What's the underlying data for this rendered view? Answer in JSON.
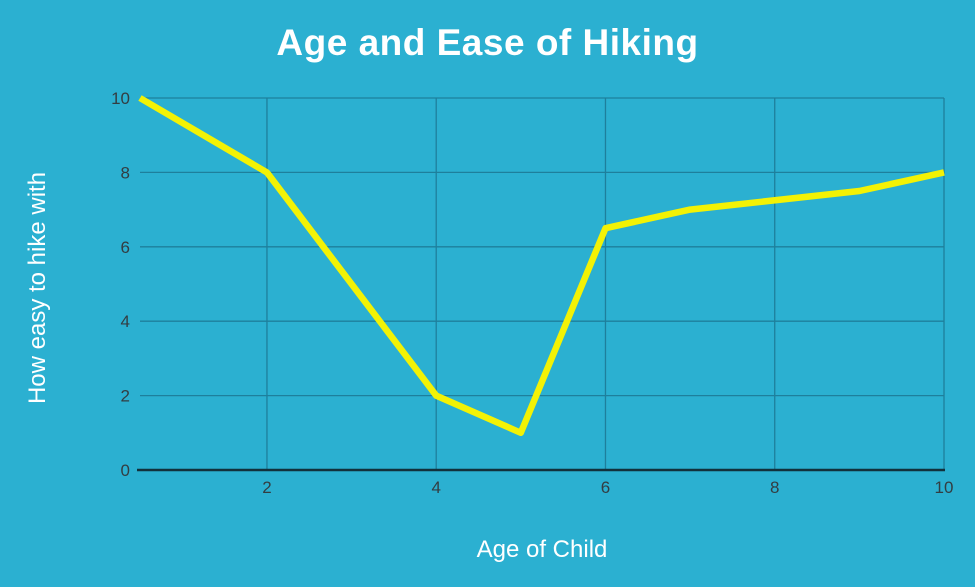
{
  "chart_data": {
    "type": "line",
    "title": "Age and Ease of Hiking",
    "xlabel": "Age of Child",
    "ylabel": "How easy to hike with",
    "x": [
      0.5,
      2,
      4,
      5,
      6,
      7,
      9,
      10
    ],
    "y": [
      10,
      8,
      2,
      1,
      6.5,
      7,
      7.5,
      8
    ],
    "xlim": [
      0.5,
      10
    ],
    "ylim": [
      0,
      10
    ],
    "x_ticks": [
      2,
      4,
      6,
      8,
      10
    ],
    "y_ticks": [
      0,
      2,
      4,
      6,
      8,
      10
    ],
    "grid": true,
    "legend_position": "none"
  },
  "colors": {
    "background": "#2BB0D1",
    "line": "#F3F205",
    "gridline": "#1E7F9C",
    "axis_baseline": "#12313C",
    "tick_text": "#333D42",
    "title_text": "#FFFFFF",
    "axis_label_text": "#FFFFFF"
  }
}
